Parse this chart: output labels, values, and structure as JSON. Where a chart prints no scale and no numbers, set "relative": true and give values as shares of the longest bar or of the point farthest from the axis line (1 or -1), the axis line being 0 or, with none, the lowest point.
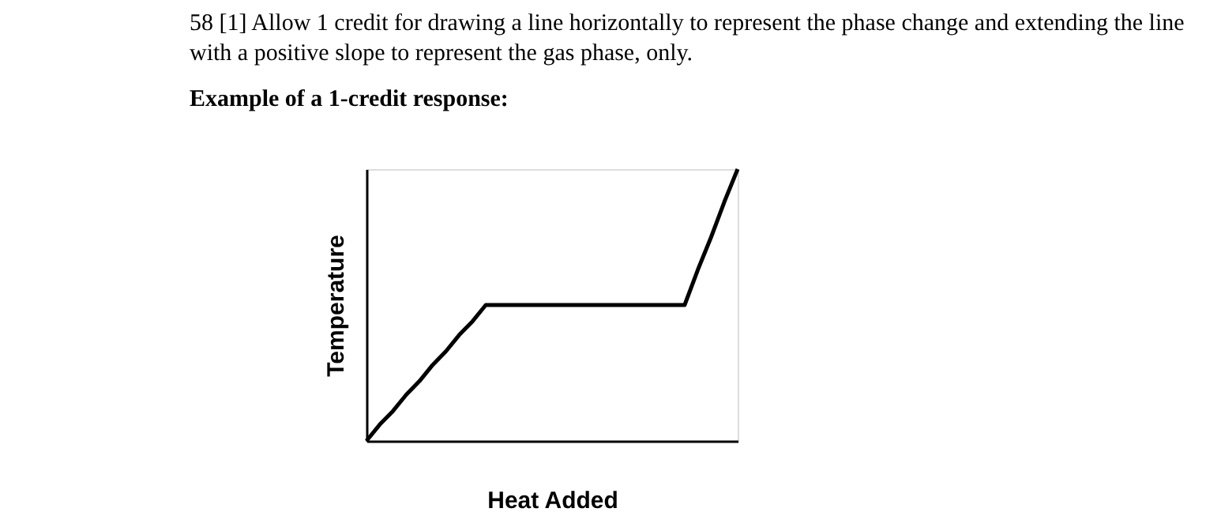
{
  "chart_data": {
    "type": "line",
    "title": "58 [1] Allow 1 credit for drawing a line horizontally to represent the phase change and extending the line with a positive slope to represent the gas phase, only.",
    "subtitle": "Example of a 1-credit response:",
    "xlabel": "Heat Added",
    "ylabel": "Temperature",
    "relative": true,
    "tick_labels": false,
    "categories": [
      null,
      null,
      null,
      null,
      null,
      null,
      null,
      null,
      null,
      null,
      null,
      null,
      null,
      null,
      null,
      null,
      null,
      null,
      null,
      null,
      null,
      null,
      null,
      null,
      null,
      null,
      null,
      null,
      null
    ],
    "values": [
      0,
      0.06,
      0.11,
      0.17,
      0.22,
      0.28,
      0.33,
      0.39,
      0.44,
      0.5,
      0.5,
      0.5,
      0.5,
      0.5,
      0.5,
      0.5,
      0.5,
      0.5,
      0.5,
      0.5,
      0.5,
      0.5,
      0.5,
      0.5,
      0.5,
      0.63,
      0.75,
      0.88,
      1
    ],
    "color": "#000000"
  }
}
